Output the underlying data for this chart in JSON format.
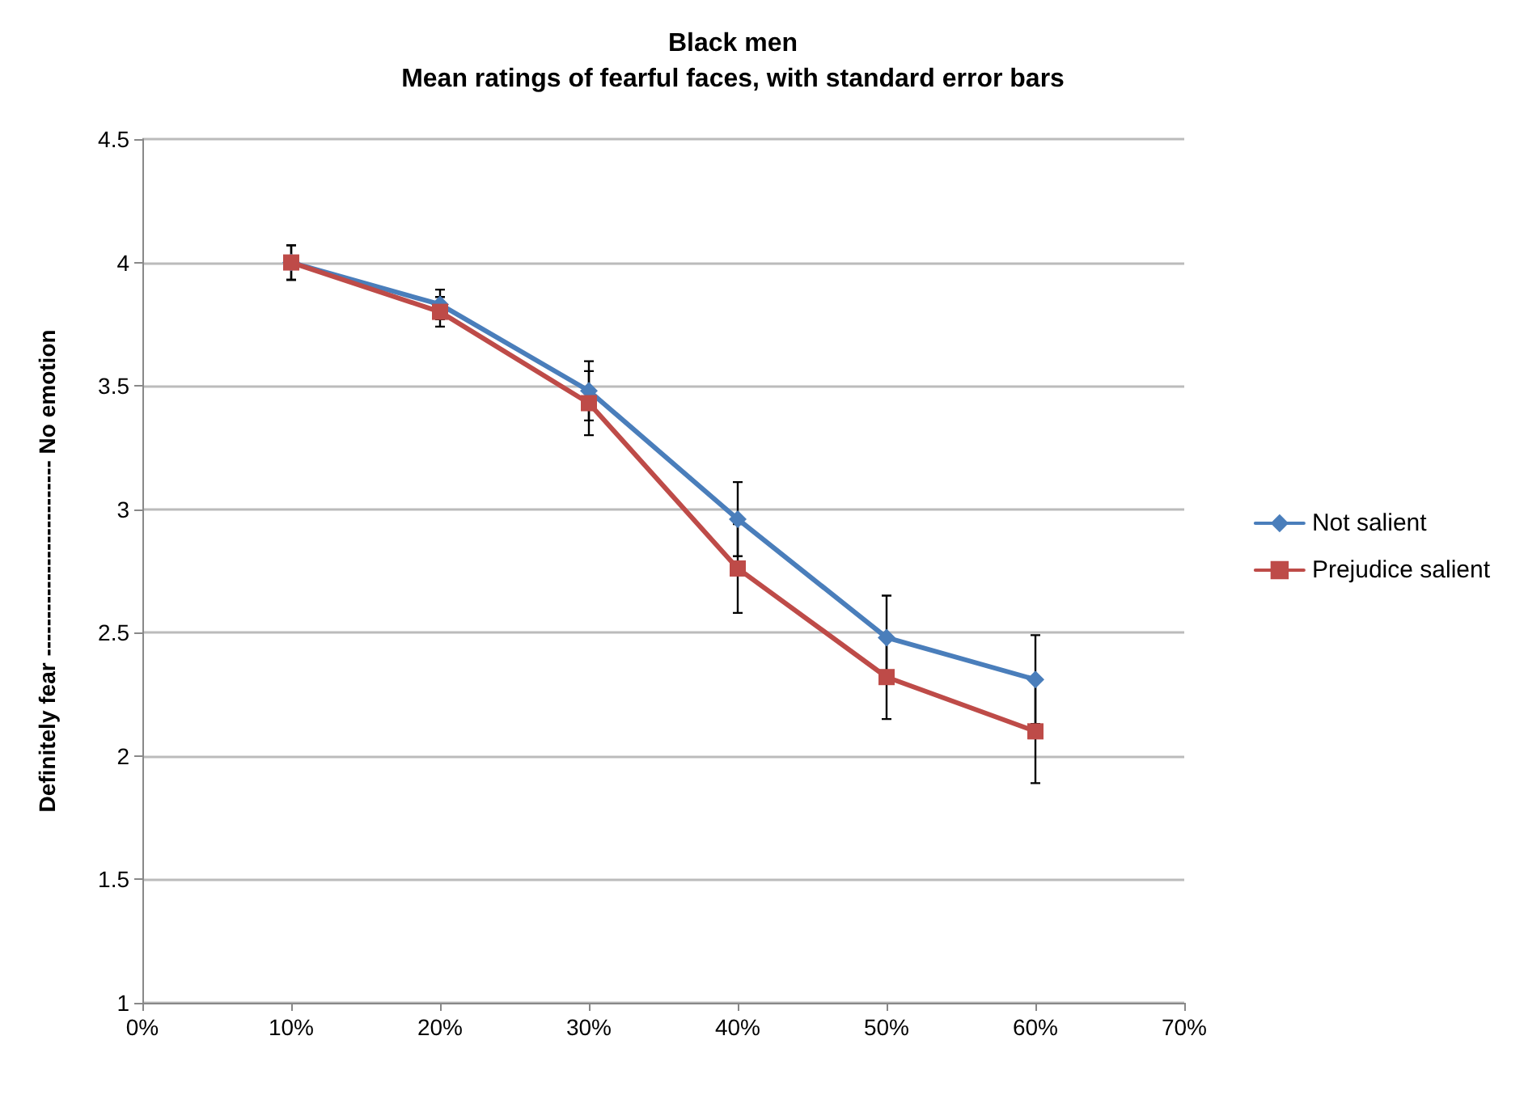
{
  "chart_data": {
    "type": "line",
    "title": "Black men",
    "subtitle": "Mean ratings of fearful faces, with standard error bars",
    "ylabel": "Definitely fear -------------------------- No emotion",
    "x": [
      10,
      20,
      30,
      40,
      50,
      60
    ],
    "series": [
      {
        "name": "Not salient",
        "color": "#4a7ebb",
        "marker": "diamond",
        "values": [
          4.0,
          3.83,
          3.48,
          2.96,
          2.48,
          2.31
        ],
        "errors": [
          0.07,
          0.06,
          0.12,
          0.15,
          0.17,
          0.18
        ]
      },
      {
        "name": "Prejudice salient",
        "color": "#be4b48",
        "marker": "square",
        "values": [
          4.0,
          3.8,
          3.43,
          2.76,
          2.32,
          2.1
        ],
        "errors": [
          0.07,
          0.06,
          0.13,
          0.18,
          0.17,
          0.21
        ]
      }
    ],
    "xlim": [
      0,
      70
    ],
    "xticks": [
      {
        "value": 0,
        "label": "0%"
      },
      {
        "value": 10,
        "label": "10%"
      },
      {
        "value": 20,
        "label": "20%"
      },
      {
        "value": 30,
        "label": "30%"
      },
      {
        "value": 40,
        "label": "40%"
      },
      {
        "value": 50,
        "label": "50%"
      },
      {
        "value": 60,
        "label": "60%"
      },
      {
        "value": 70,
        "label": "70%"
      }
    ],
    "ylim": [
      1,
      4.5
    ],
    "yticks": [
      1,
      1.5,
      2,
      2.5,
      3,
      3.5,
      4,
      4.5
    ],
    "grid": "y",
    "legend": "right"
  }
}
